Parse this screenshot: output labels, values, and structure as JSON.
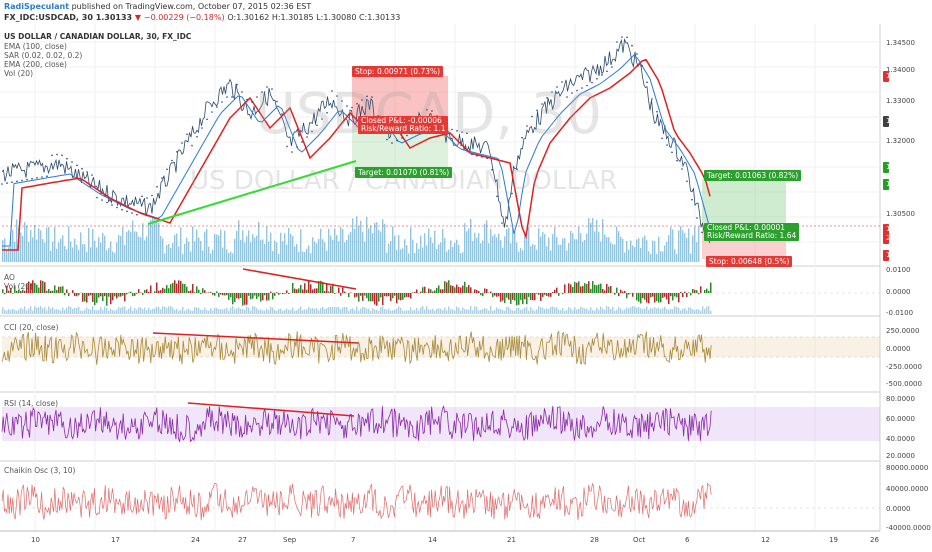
{
  "header": {
    "author": "RadiSpeculant",
    "published": "published on TradingView.com, October 07, 2015 02:36 EST",
    "symbol": "FX_IDC:USDCAD, 30",
    "last": "1.30133",
    "change": "−0.00229 (−0.18%)",
    "ohlc": "O:1.30162 H:1.30185 L:1.30080 C:1.30133"
  },
  "main": {
    "title": "US DOLLAR / CANADIAN DOLLAR, 30, FX_IDC",
    "indicators": [
      "EMA (100, close)",
      "SAR (0.02, 0.02, 0.2)",
      "EMA (200, close)",
      "Vol (20)"
    ],
    "watermark_big": "USDCAD, 30",
    "watermark_small": "US DOLLAR / CANADIAN DOLLAR",
    "price_axis": [
      "1.34500",
      "1.34000",
      "1.33500",
      "1.33000",
      "1.32500",
      "1.32000",
      "1.31500",
      "1.31000",
      "1.30500",
      "1.30000"
    ],
    "price_badges": [
      {
        "text": "1.33606",
        "color": "#e03030"
      },
      {
        "text": "1.32635",
        "color": "#404040"
      },
      {
        "text": "1.31565",
        "color": "#22a022"
      },
      {
        "text": "1.31195",
        "color": "#22a022"
      },
      {
        "text": "1.30133",
        "color": "#e03030"
      },
      {
        "text": "23:28",
        "color": "#e03030"
      },
      {
        "text": "1.29484",
        "color": "#e03030"
      }
    ],
    "position1": {
      "stop": "Stop: 0.00971 (0.73%)",
      "target": "Target: 0.01070 (0.81%)",
      "pnl": "Closed P&L: -0.00006",
      "rr": "Risk/Reward Ratio: 1.1"
    },
    "position2": {
      "stop": "Stop: 0.00648 (0.5%)",
      "target": "Target: 0.01063 (0.82%)",
      "pnl": "Closed P&L: 0.00001",
      "rr": "Risk/Reward Ratio: 1.64"
    }
  },
  "ao": {
    "title": "AO",
    "subtitle": "Vol (20)",
    "axis": [
      "0.0100",
      "0.0000",
      "-0.0100"
    ]
  },
  "cci": {
    "title": "CCI (20, close)",
    "axis": [
      "250.0000",
      "0.0000",
      "-250.0000",
      "-500.0000"
    ]
  },
  "rsi": {
    "title": "RSI (14, close)",
    "axis": [
      "80.0000",
      "60.0000",
      "40.0000",
      "20.0000"
    ]
  },
  "chaikin": {
    "title": "Chaikin Osc (3, 10)",
    "axis": [
      "80000.0000",
      "40000.0000",
      "0.0000",
      "-40000.0000"
    ]
  },
  "time_axis": [
    "10",
    "17",
    "24",
    "27",
    "Sep",
    "7",
    "14",
    "21",
    "28",
    "Oct",
    "6",
    "12",
    "19",
    "26"
  ],
  "colors": {
    "price_line": "#2a4a6a",
    "ema100": "#2a7bd4",
    "ema200": "#e02020",
    "volume": "#6fb0d6",
    "trend_up": "#33dd33",
    "divergence": "#e02020",
    "cci": "#a88a3a",
    "rsi": "#8a2aa8",
    "chaikin": "#e06a6a"
  }
}
